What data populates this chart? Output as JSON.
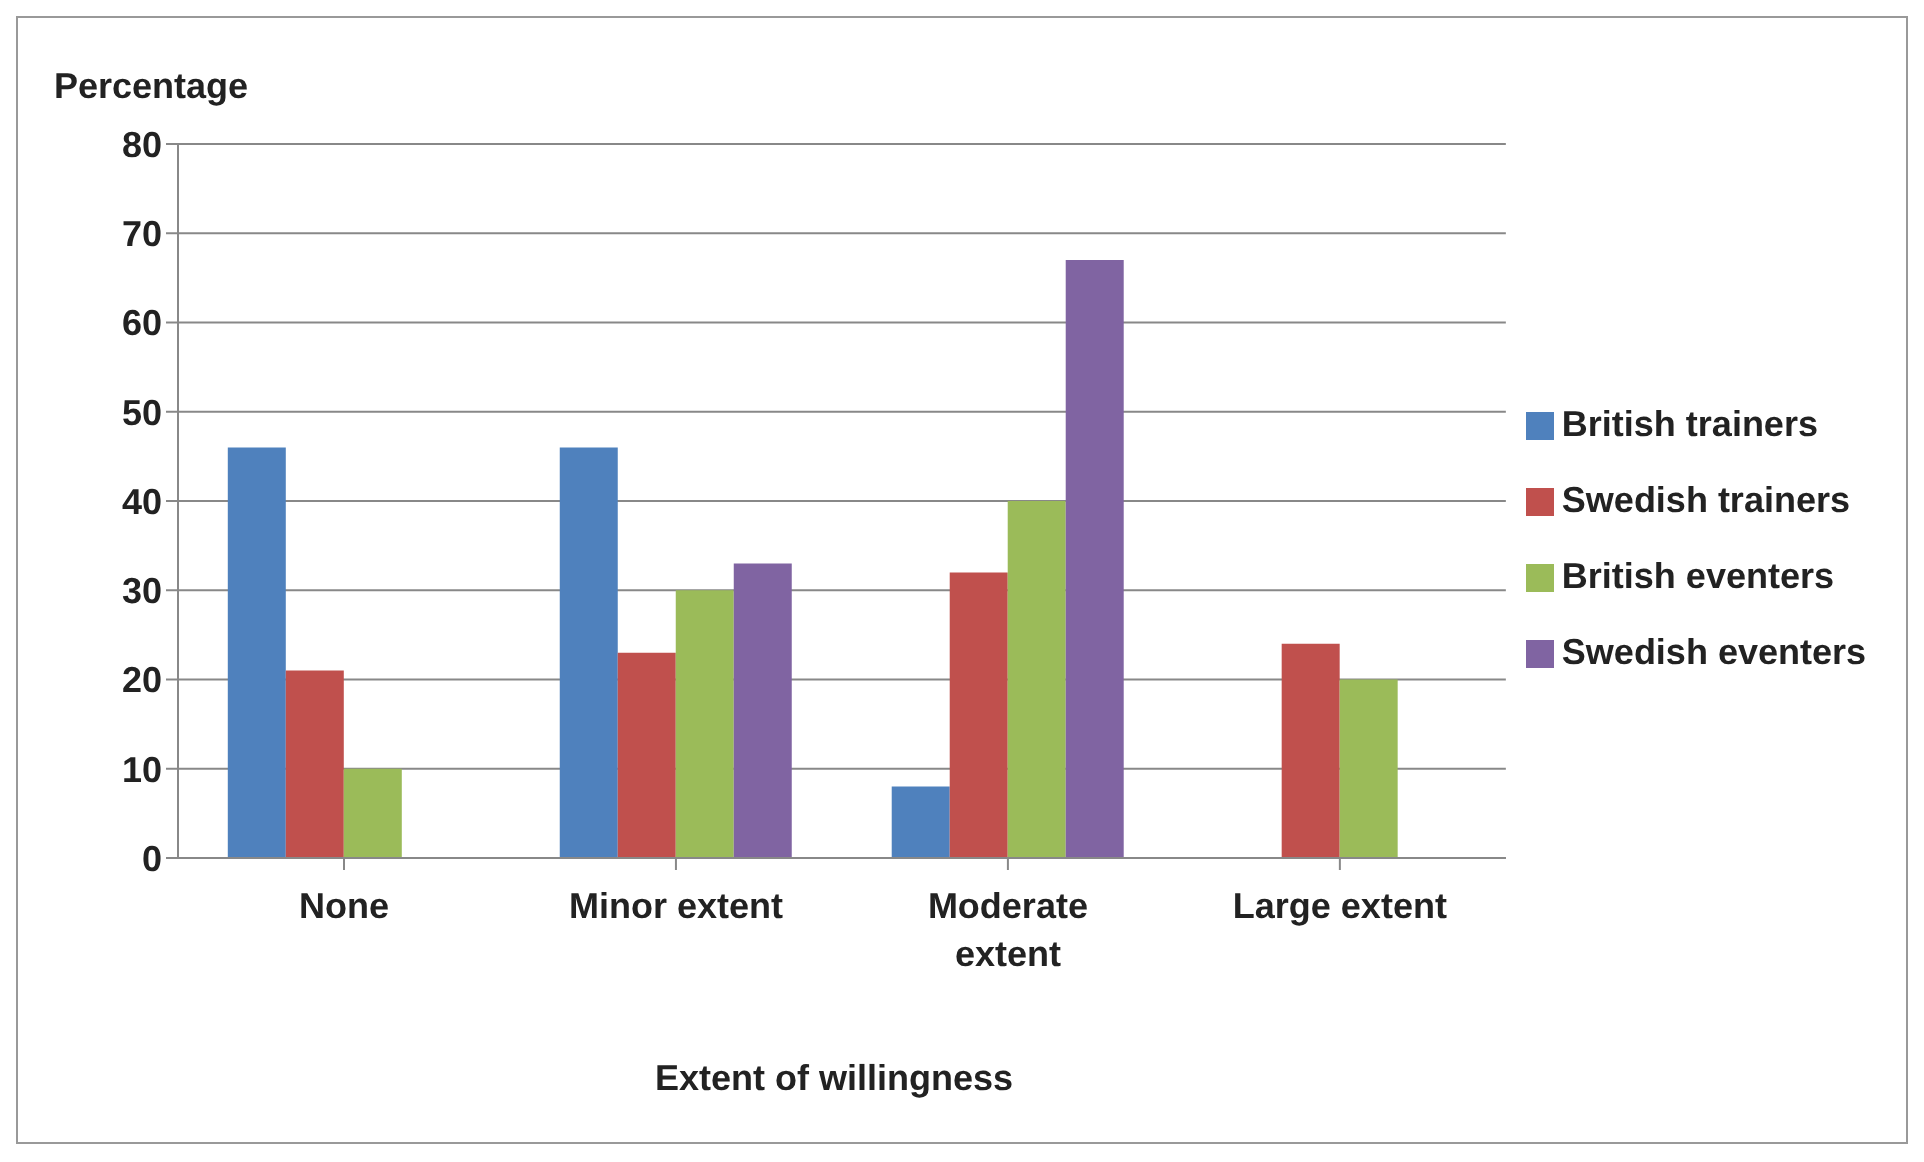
{
  "chart_data": {
    "type": "bar",
    "ylabel": "Percentage",
    "xlabel": "Extent of willingness",
    "categories": [
      "None",
      "Minor extent",
      "Moderate extent",
      "Large extent"
    ],
    "series": [
      {
        "name": "British trainers",
        "color": "#4f81bd",
        "values": [
          46,
          46,
          8,
          0
        ]
      },
      {
        "name": "Swedish trainers",
        "color": "#c0504d",
        "values": [
          21,
          23,
          32,
          24
        ]
      },
      {
        "name": "British eventers",
        "color": "#9bbb59",
        "values": [
          10,
          30,
          40,
          20
        ]
      },
      {
        "name": "Swedish eventers",
        "color": "#8064a2",
        "values": [
          0,
          33,
          67,
          0
        ]
      }
    ],
    "ylim": [
      0,
      80
    ],
    "yticks": [
      0,
      10,
      20,
      30,
      40,
      50,
      60,
      70,
      80
    ],
    "grid": "y",
    "legend": "right"
  }
}
